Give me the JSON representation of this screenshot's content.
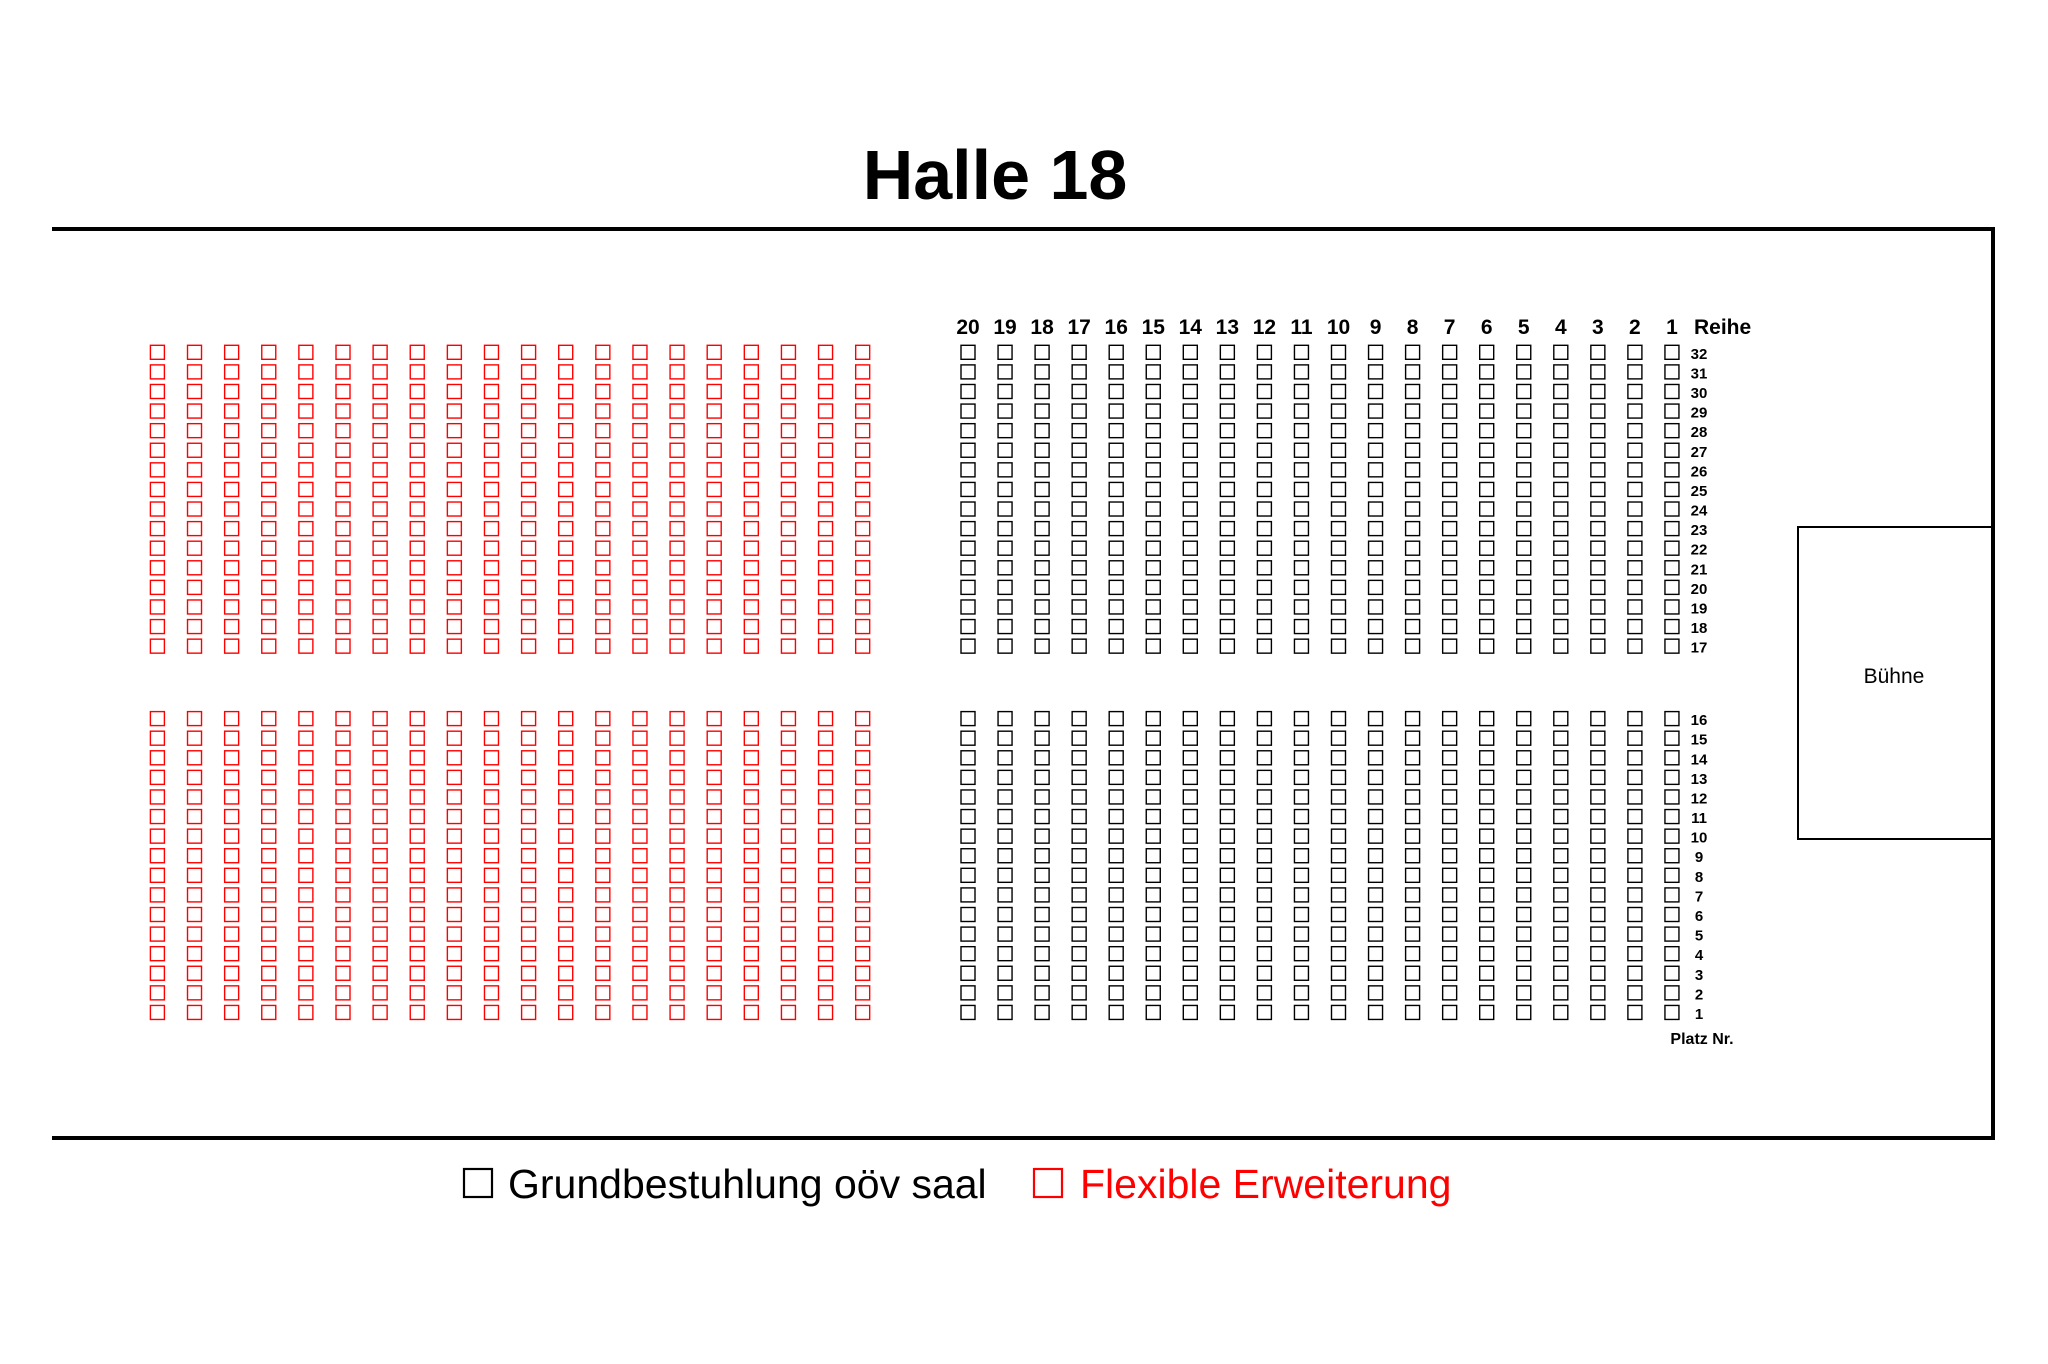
{
  "title": "Halle 18",
  "stage": {
    "label": "Bühne"
  },
  "reihe_label": "Reihe",
  "platz_label": "Platz Nr.",
  "grundbestuhlung": {
    "reihen": [
      "20",
      "19",
      "18",
      "17",
      "16",
      "15",
      "14",
      "13",
      "12",
      "11",
      "10",
      "9",
      "8",
      "7",
      "6",
      "5",
      "4",
      "3",
      "2",
      "1"
    ],
    "plaetze": [
      [
        "32",
        "31",
        "30",
        "29",
        "28",
        "27",
        "26",
        "25",
        "24",
        "23",
        "22",
        "21",
        "20",
        "19",
        "18",
        "17"
      ],
      [
        "16",
        "15",
        "14",
        "13",
        "12",
        "11",
        "10",
        "9",
        "8",
        "7",
        "6",
        "5",
        "4",
        "3",
        "2",
        "1"
      ]
    ]
  },
  "flexible_erweiterung": {
    "reihen_count": 20,
    "plaetze_per_block": [
      16,
      16
    ]
  },
  "legend": [
    {
      "label": "Grundbestuhlung oöv saal",
      "color": "#000000"
    },
    {
      "label": "Flexible Erweiterung",
      "color": "#ff0000"
    }
  ]
}
